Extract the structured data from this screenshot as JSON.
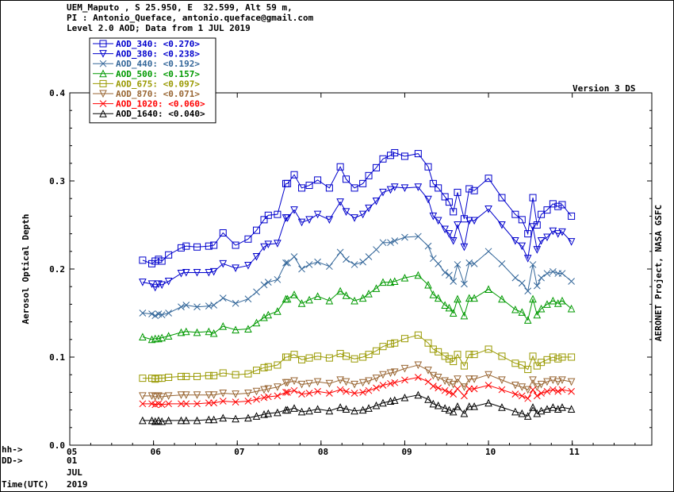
{
  "header": {
    "line1": "UEM_Maputo , S 25.950, E  32.599, Alt 59 m,",
    "line2": "PI : Antonio_Queface, antonio.queface@gmail.com",
    "line3": "Level 2.0 AOD; Data from 1 JUL 2019"
  },
  "version_label": "Version 3 DS",
  "right_label": "AERONET Project, NASA GSFC",
  "footer": {
    "hh": "hh->",
    "dd": "DD->",
    "time": "Time(UTC)",
    "day": "01",
    "month": "JUL",
    "year": "2019"
  },
  "chart_data": {
    "type": "line",
    "ylabel": "Aerosol Optical Depth",
    "xlim": [
      5,
      11.95
    ],
    "ylim": [
      0,
      0.4
    ],
    "xticks": [
      "05",
      "06",
      "07",
      "08",
      "09",
      "10",
      "11"
    ],
    "yticks": [
      "0.0",
      "0.1",
      "0.2",
      "0.3",
      "0.4"
    ],
    "legend_position": "top-left",
    "x": [
      5.87,
      5.98,
      6.02,
      6.06,
      6.1,
      6.18,
      6.33,
      6.39,
      6.52,
      6.66,
      6.72,
      6.83,
      6.98,
      7.13,
      7.23,
      7.32,
      7.37,
      7.48,
      7.58,
      7.6,
      7.68,
      7.77,
      7.86,
      7.96,
      8.1,
      8.23,
      8.3,
      8.4,
      8.5,
      8.57,
      8.66,
      8.74,
      8.83,
      8.88,
      9.0,
      9.16,
      9.28,
      9.34,
      9.4,
      9.48,
      9.53,
      9.58,
      9.63,
      9.71,
      9.77,
      9.83,
      10.0,
      10.16,
      10.32,
      10.4,
      10.47,
      10.53,
      10.58,
      10.63,
      10.7,
      10.77,
      10.83,
      10.88,
      10.99
    ],
    "series": [
      {
        "name": "AOD_340",
        "legend": "AOD_340: <0.270>",
        "color": "#0000cc",
        "marker": "square",
        "values": [
          0.21,
          0.206,
          0.209,
          0.211,
          0.209,
          0.216,
          0.224,
          0.226,
          0.225,
          0.226,
          0.227,
          0.241,
          0.227,
          0.234,
          0.244,
          0.256,
          0.261,
          0.262,
          0.297,
          0.297,
          0.307,
          0.292,
          0.295,
          0.301,
          0.292,
          0.316,
          0.302,
          0.292,
          0.297,
          0.306,
          0.315,
          0.325,
          0.329,
          0.332,
          0.328,
          0.331,
          0.316,
          0.297,
          0.292,
          0.282,
          0.276,
          0.265,
          0.287,
          0.257,
          0.291,
          0.289,
          0.303,
          0.281,
          0.262,
          0.256,
          0.24,
          0.281,
          0.25,
          0.262,
          0.267,
          0.274,
          0.271,
          0.273,
          0.26
        ]
      },
      {
        "name": "AOD_380",
        "legend": "AOD_380: <0.238>",
        "color": "#0000cc",
        "marker": "tri_down",
        "values": [
          0.185,
          0.183,
          0.179,
          0.183,
          0.182,
          0.186,
          0.195,
          0.196,
          0.196,
          0.196,
          0.197,
          0.206,
          0.201,
          0.204,
          0.214,
          0.225,
          0.228,
          0.229,
          0.258,
          0.258,
          0.267,
          0.253,
          0.256,
          0.262,
          0.256,
          0.276,
          0.265,
          0.258,
          0.262,
          0.269,
          0.277,
          0.287,
          0.29,
          0.293,
          0.292,
          0.293,
          0.279,
          0.26,
          0.255,
          0.245,
          0.24,
          0.232,
          0.25,
          0.225,
          0.255,
          0.255,
          0.268,
          0.25,
          0.232,
          0.226,
          0.212,
          0.248,
          0.222,
          0.232,
          0.236,
          0.243,
          0.24,
          0.242,
          0.231
        ]
      },
      {
        "name": "AOD_440",
        "legend": "AOD_440: <0.192>",
        "color": "#336699",
        "marker": "x",
        "values": [
          0.15,
          0.149,
          0.147,
          0.149,
          0.148,
          0.15,
          0.157,
          0.159,
          0.157,
          0.158,
          0.159,
          0.167,
          0.161,
          0.166,
          0.174,
          0.182,
          0.185,
          0.188,
          0.207,
          0.207,
          0.214,
          0.2,
          0.205,
          0.208,
          0.203,
          0.219,
          0.211,
          0.205,
          0.208,
          0.214,
          0.222,
          0.23,
          0.23,
          0.232,
          0.236,
          0.237,
          0.226,
          0.212,
          0.206,
          0.196,
          0.193,
          0.186,
          0.205,
          0.183,
          0.207,
          0.206,
          0.22,
          0.206,
          0.19,
          0.184,
          0.175,
          0.205,
          0.181,
          0.19,
          0.195,
          0.197,
          0.195,
          0.195,
          0.186
        ]
      },
      {
        "name": "AOD_500",
        "legend": "AOD_500: <0.157>",
        "color": "#009900",
        "marker": "tri_up",
        "values": [
          0.123,
          0.12,
          0.121,
          0.121,
          0.122,
          0.124,
          0.128,
          0.129,
          0.128,
          0.129,
          0.127,
          0.135,
          0.131,
          0.132,
          0.139,
          0.145,
          0.148,
          0.152,
          0.166,
          0.166,
          0.171,
          0.161,
          0.165,
          0.169,
          0.164,
          0.175,
          0.17,
          0.164,
          0.167,
          0.172,
          0.178,
          0.185,
          0.185,
          0.186,
          0.19,
          0.193,
          0.182,
          0.171,
          0.167,
          0.159,
          0.156,
          0.15,
          0.166,
          0.147,
          0.167,
          0.167,
          0.177,
          0.166,
          0.154,
          0.151,
          0.142,
          0.166,
          0.148,
          0.155,
          0.16,
          0.164,
          0.161,
          0.164,
          0.155
        ]
      },
      {
        "name": "AOD_675",
        "legend": "AOD_675: <0.097>",
        "color": "#999900",
        "marker": "square",
        "values": [
          0.076,
          0.076,
          0.075,
          0.076,
          0.076,
          0.077,
          0.078,
          0.078,
          0.078,
          0.079,
          0.079,
          0.082,
          0.08,
          0.081,
          0.085,
          0.088,
          0.089,
          0.091,
          0.1,
          0.1,
          0.103,
          0.097,
          0.099,
          0.101,
          0.099,
          0.104,
          0.101,
          0.098,
          0.1,
          0.103,
          0.107,
          0.112,
          0.115,
          0.116,
          0.121,
          0.125,
          0.116,
          0.109,
          0.106,
          0.101,
          0.098,
          0.095,
          0.103,
          0.09,
          0.103,
          0.103,
          0.109,
          0.101,
          0.093,
          0.091,
          0.086,
          0.101,
          0.09,
          0.094,
          0.097,
          0.1,
          0.098,
          0.1,
          0.1
        ]
      },
      {
        "name": "AOD_870",
        "legend": "AOD_870: <0.071>",
        "color": "#996633",
        "marker": "tri_down",
        "values": [
          0.056,
          0.056,
          0.055,
          0.056,
          0.055,
          0.056,
          0.057,
          0.057,
          0.057,
          0.057,
          0.057,
          0.059,
          0.058,
          0.059,
          0.061,
          0.063,
          0.064,
          0.066,
          0.071,
          0.071,
          0.073,
          0.069,
          0.07,
          0.072,
          0.07,
          0.074,
          0.072,
          0.069,
          0.071,
          0.073,
          0.076,
          0.08,
          0.082,
          0.083,
          0.087,
          0.091,
          0.085,
          0.079,
          0.077,
          0.073,
          0.071,
          0.069,
          0.075,
          0.066,
          0.075,
          0.075,
          0.08,
          0.074,
          0.068,
          0.066,
          0.063,
          0.074,
          0.066,
          0.069,
          0.072,
          0.074,
          0.072,
          0.074,
          0.072
        ]
      },
      {
        "name": "AOD_1020",
        "legend": "AOD_1020: <0.060>",
        "color": "#ff0000",
        "marker": "x",
        "values": [
          0.047,
          0.047,
          0.046,
          0.047,
          0.046,
          0.047,
          0.047,
          0.047,
          0.047,
          0.048,
          0.048,
          0.05,
          0.049,
          0.05,
          0.052,
          0.054,
          0.055,
          0.056,
          0.06,
          0.06,
          0.062,
          0.058,
          0.059,
          0.061,
          0.059,
          0.063,
          0.061,
          0.059,
          0.06,
          0.062,
          0.065,
          0.068,
          0.07,
          0.071,
          0.074,
          0.077,
          0.072,
          0.067,
          0.065,
          0.062,
          0.06,
          0.058,
          0.064,
          0.056,
          0.064,
          0.064,
          0.068,
          0.063,
          0.058,
          0.056,
          0.053,
          0.063,
          0.056,
          0.059,
          0.061,
          0.063,
          0.061,
          0.063,
          0.061
        ]
      },
      {
        "name": "AOD_1640",
        "legend": "AOD_1640: <0.040>",
        "color": "#000000",
        "marker": "tri_up",
        "values": [
          0.028,
          0.028,
          0.027,
          0.028,
          0.027,
          0.028,
          0.028,
          0.028,
          0.028,
          0.029,
          0.029,
          0.031,
          0.03,
          0.031,
          0.033,
          0.035,
          0.036,
          0.037,
          0.04,
          0.04,
          0.042,
          0.038,
          0.039,
          0.041,
          0.039,
          0.043,
          0.041,
          0.039,
          0.04,
          0.042,
          0.045,
          0.048,
          0.05,
          0.051,
          0.054,
          0.057,
          0.052,
          0.047,
          0.045,
          0.042,
          0.04,
          0.038,
          0.044,
          0.036,
          0.044,
          0.044,
          0.048,
          0.043,
          0.038,
          0.036,
          0.033,
          0.043,
          0.036,
          0.039,
          0.041,
          0.043,
          0.041,
          0.043,
          0.041
        ]
      }
    ]
  }
}
